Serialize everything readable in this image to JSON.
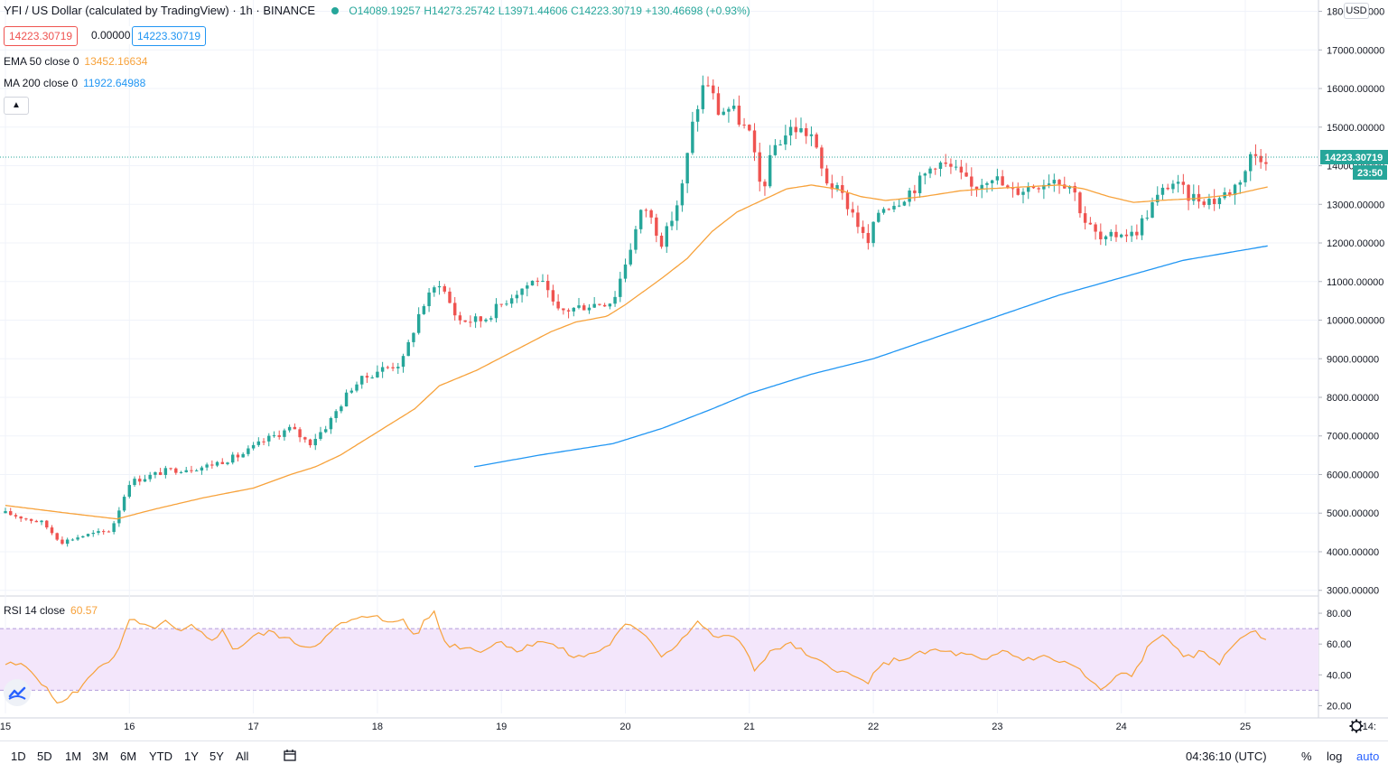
{
  "header": {
    "title": "YFI / US Dollar (calculated by TradingView) · 1h · BINANCE",
    "open_label": "O14089.19257",
    "high_label": "H14273.25742",
    "low_label": "L13971.44606",
    "close_label": "C14223.30719",
    "change_label": "+130.46698 (+0.93%)",
    "bid": "14223.30719",
    "spread": "0.00000",
    "ask": "14223.30719"
  },
  "indicators": {
    "ema_label": "EMA 50 close 0",
    "ema_value": "13452.16634",
    "ma_label": "MA 200 close 0",
    "ma_value": "11922.64988",
    "rsi_label": "RSI 14 close",
    "rsi_value": "60.57"
  },
  "colors": {
    "up": "#26a69a",
    "down": "#ef5350",
    "ema": "#f7a23b",
    "ma": "#2196f3",
    "rsi": "#f7a23b",
    "rsi_band": "#f3e6fb"
  },
  "price_axis": {
    "currency": "USD",
    "current_price_label": "14223.30719",
    "countdown": "23:50"
  },
  "chart_data": {
    "type": "line",
    "symbol": "YFI / US Dollar",
    "interval": "1h",
    "x_ticks": [
      "15",
      "16",
      "17",
      "18",
      "19",
      "20",
      "21",
      "22",
      "23",
      "24",
      "25",
      "14:"
    ],
    "y_ticks": [
      "18000.00000",
      "17000.00000",
      "16000.00000",
      "15000.00000",
      "14000.00000",
      "13000.00000",
      "12000.00000",
      "11000.00000",
      "10000.00000",
      "9000.00000",
      "8000.00000",
      "7000.00000",
      "6000.00000",
      "5000.00000",
      "4000.00000",
      "3000.00000"
    ],
    "ylim": [
      2900,
      18200
    ],
    "day_start": 15,
    "price_key": [
      [
        15.0,
        5000
      ],
      [
        15.3,
        4750
      ],
      [
        15.45,
        4250
      ],
      [
        15.6,
        4400
      ],
      [
        15.85,
        4550
      ],
      [
        16.0,
        5800
      ],
      [
        16.3,
        6100
      ],
      [
        16.6,
        6200
      ],
      [
        16.9,
        6500
      ],
      [
        17.1,
        6900
      ],
      [
        17.3,
        7200
      ],
      [
        17.45,
        6800
      ],
      [
        17.6,
        7300
      ],
      [
        17.8,
        8300
      ],
      [
        18.0,
        8700
      ],
      [
        18.2,
        8900
      ],
      [
        18.35,
        10300
      ],
      [
        18.5,
        11000
      ],
      [
        18.65,
        10000
      ],
      [
        18.85,
        10000
      ],
      [
        19.1,
        10700
      ],
      [
        19.3,
        11100
      ],
      [
        19.45,
        10200
      ],
      [
        19.7,
        10400
      ],
      [
        19.9,
        10500
      ],
      [
        20.0,
        11500
      ],
      [
        20.15,
        13000
      ],
      [
        20.3,
        12000
      ],
      [
        20.45,
        13300
      ],
      [
        20.55,
        15200
      ],
      [
        20.65,
        16300
      ],
      [
        20.75,
        15400
      ],
      [
        20.85,
        15500
      ],
      [
        21.0,
        14800
      ],
      [
        21.1,
        13300
      ],
      [
        21.2,
        14500
      ],
      [
        21.35,
        15000
      ],
      [
        21.5,
        14800
      ],
      [
        21.6,
        13700
      ],
      [
        21.75,
        13200
      ],
      [
        21.85,
        12700
      ],
      [
        21.95,
        11900
      ],
      [
        22.05,
        12900
      ],
      [
        22.2,
        13100
      ],
      [
        22.35,
        13500
      ],
      [
        22.5,
        14100
      ],
      [
        22.65,
        13900
      ],
      [
        22.8,
        13400
      ],
      [
        22.95,
        13800
      ],
      [
        23.1,
        13300
      ],
      [
        23.3,
        13500
      ],
      [
        23.45,
        13700
      ],
      [
        23.6,
        13500
      ],
      [
        23.7,
        12600
      ],
      [
        23.85,
        12000
      ],
      [
        24.0,
        12300
      ],
      [
        24.1,
        12200
      ],
      [
        24.25,
        13000
      ],
      [
        24.4,
        13600
      ],
      [
        24.55,
        13200
      ],
      [
        24.75,
        13100
      ],
      [
        24.9,
        13400
      ],
      [
        25.0,
        13900
      ],
      [
        25.05,
        14300
      ],
      [
        25.18,
        14223
      ]
    ],
    "ema_key": [
      [
        15.0,
        5200
      ],
      [
        15.5,
        5000
      ],
      [
        15.9,
        4850
      ],
      [
        16.2,
        5100
      ],
      [
        16.6,
        5400
      ],
      [
        17.0,
        5650
      ],
      [
        17.3,
        6000
      ],
      [
        17.5,
        6200
      ],
      [
        17.7,
        6500
      ],
      [
        18.0,
        7100
      ],
      [
        18.3,
        7700
      ],
      [
        18.5,
        8300
      ],
      [
        18.8,
        8700
      ],
      [
        19.1,
        9200
      ],
      [
        19.4,
        9700
      ],
      [
        19.6,
        9950
      ],
      [
        19.85,
        10100
      ],
      [
        20.0,
        10400
      ],
      [
        20.3,
        11100
      ],
      [
        20.5,
        11600
      ],
      [
        20.7,
        12300
      ],
      [
        20.9,
        12800
      ],
      [
        21.1,
        13100
      ],
      [
        21.3,
        13400
      ],
      [
        21.5,
        13500
      ],
      [
        21.7,
        13400
      ],
      [
        21.9,
        13200
      ],
      [
        22.1,
        13100
      ],
      [
        22.4,
        13200
      ],
      [
        22.7,
        13350
      ],
      [
        22.9,
        13400
      ],
      [
        23.2,
        13450
      ],
      [
        23.5,
        13500
      ],
      [
        23.7,
        13400
      ],
      [
        23.9,
        13200
      ],
      [
        24.1,
        13050
      ],
      [
        24.3,
        13100
      ],
      [
        24.6,
        13150
      ],
      [
        24.9,
        13250
      ],
      [
        25.18,
        13452
      ]
    ],
    "ma_key": [
      [
        18.78,
        6200
      ],
      [
        19.3,
        6500
      ],
      [
        19.9,
        6800
      ],
      [
        20.3,
        7200
      ],
      [
        20.7,
        7700
      ],
      [
        21.0,
        8100
      ],
      [
        21.5,
        8600
      ],
      [
        22.0,
        9000
      ],
      [
        22.5,
        9550
      ],
      [
        23.0,
        10100
      ],
      [
        23.5,
        10650
      ],
      [
        24.0,
        11100
      ],
      [
        24.5,
        11550
      ],
      [
        25.18,
        11923
      ]
    ],
    "rsi_ticks": [
      "80.00",
      "60.00",
      "40.00",
      "20.00"
    ],
    "rsi_ylim": [
      15,
      90
    ],
    "rsi_bands": [
      70,
      30
    ],
    "rsi_key": [
      [
        15.0,
        47
      ],
      [
        15.15,
        46
      ],
      [
        15.25,
        40
      ],
      [
        15.35,
        28
      ],
      [
        15.45,
        21
      ],
      [
        15.55,
        28
      ],
      [
        15.65,
        35
      ],
      [
        15.75,
        46
      ],
      [
        15.9,
        52
      ],
      [
        16.0,
        76
      ],
      [
        16.15,
        70
      ],
      [
        16.3,
        74
      ],
      [
        16.4,
        67
      ],
      [
        16.5,
        71
      ],
      [
        16.65,
        63
      ],
      [
        16.75,
        68
      ],
      [
        16.85,
        56
      ],
      [
        17.0,
        65
      ],
      [
        17.15,
        68
      ],
      [
        17.3,
        62
      ],
      [
        17.45,
        58
      ],
      [
        17.6,
        65
      ],
      [
        17.7,
        73
      ],
      [
        17.85,
        76
      ],
      [
        18.0,
        80
      ],
      [
        18.1,
        72
      ],
      [
        18.2,
        77
      ],
      [
        18.3,
        65
      ],
      [
        18.45,
        82
      ],
      [
        18.55,
        60
      ],
      [
        18.7,
        58
      ],
      [
        18.85,
        56
      ],
      [
        19.0,
        62
      ],
      [
        19.15,
        55
      ],
      [
        19.3,
        63
      ],
      [
        19.45,
        58
      ],
      [
        19.6,
        51
      ],
      [
        19.7,
        53
      ],
      [
        19.85,
        58
      ],
      [
        20.0,
        72
      ],
      [
        20.15,
        68
      ],
      [
        20.3,
        52
      ],
      [
        20.45,
        63
      ],
      [
        20.6,
        75
      ],
      [
        20.7,
        64
      ],
      [
        20.8,
        66
      ],
      [
        20.95,
        60
      ],
      [
        21.05,
        43
      ],
      [
        21.2,
        57
      ],
      [
        21.35,
        60
      ],
      [
        21.5,
        50
      ],
      [
        21.65,
        46
      ],
      [
        21.8,
        40
      ],
      [
        21.95,
        35
      ],
      [
        22.1,
        48
      ],
      [
        22.3,
        52
      ],
      [
        22.5,
        56
      ],
      [
        22.65,
        54
      ],
      [
        22.8,
        52
      ],
      [
        22.9,
        48
      ],
      [
        23.05,
        56
      ],
      [
        23.2,
        50
      ],
      [
        23.35,
        52
      ],
      [
        23.5,
        49
      ],
      [
        23.65,
        45
      ],
      [
        23.75,
        35
      ],
      [
        23.85,
        30
      ],
      [
        24.0,
        41
      ],
      [
        24.1,
        40
      ],
      [
        24.2,
        56
      ],
      [
        24.35,
        68
      ],
      [
        24.5,
        50
      ],
      [
        24.65,
        55
      ],
      [
        24.8,
        48
      ],
      [
        24.95,
        64
      ],
      [
        25.05,
        69
      ],
      [
        25.18,
        60
      ]
    ]
  },
  "toolbar": {
    "ranges": [
      "1D",
      "5D",
      "1M",
      "3M",
      "6M",
      "YTD",
      "1Y",
      "5Y",
      "All"
    ],
    "time": "04:36:10 (UTC)",
    "percent": "%",
    "log": "log",
    "auto": "auto"
  }
}
